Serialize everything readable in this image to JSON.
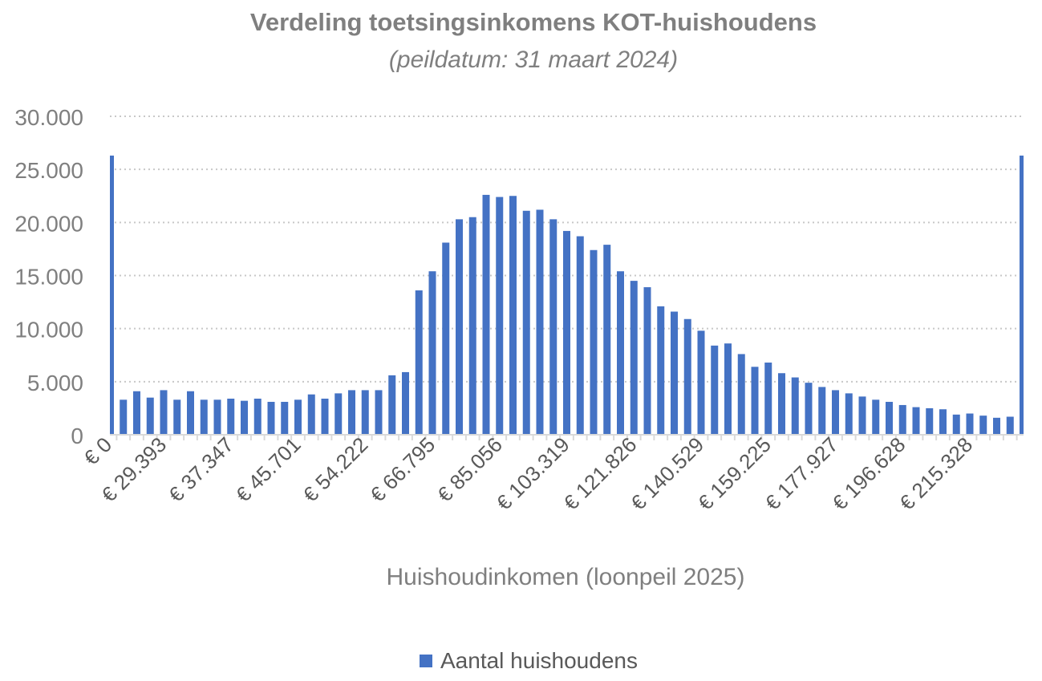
{
  "chart_data": {
    "type": "bar",
    "title": "Verdeling toetsingsinkomens KOT-huishoudens",
    "subtitle": "(peildatum: 31 maart 2024)",
    "xlabel": "Huishoudinkomen (loonpeil 2025)",
    "ylabel": "",
    "ylim": [
      0,
      30000
    ],
    "yticks": [
      "0",
      "5.000",
      "10.000",
      "15.000",
      "20.000",
      "25.000",
      "30.000"
    ],
    "ytick_values": [
      0,
      5000,
      10000,
      15000,
      20000,
      25000,
      30000
    ],
    "grid": "horizontal dotted",
    "legend": "bottom",
    "xtick_labels": [
      "€ 0",
      "€ 29.393",
      "€ 37.347",
      "€ 45.701",
      "€ 54.222",
      "€ 66.795",
      "€ 85.056",
      "€ 103.319",
      "€ 121.826",
      "€ 140.529",
      "€ 159.225",
      "€ 177.927",
      "€ 196.628",
      "€ 215.328"
    ],
    "series": [
      {
        "name": "Aantal huishoudens",
        "color": "#4472c4",
        "values": [
          26300,
          3300,
          4100,
          3500,
          4200,
          3300,
          4100,
          3300,
          3300,
          3400,
          3200,
          3400,
          3100,
          3100,
          3300,
          3800,
          3400,
          3900,
          4200,
          4200,
          4200,
          5600,
          5900,
          13600,
          15400,
          18100,
          20300,
          20500,
          22600,
          22400,
          22500,
          21100,
          21200,
          20300,
          19200,
          18700,
          17400,
          17900,
          15400,
          14500,
          13900,
          12100,
          11600,
          10900,
          9800,
          8400,
          8600,
          7600,
          6400,
          6800,
          5800,
          5400,
          4900,
          4500,
          4200,
          3900,
          3600,
          3300,
          3100,
          2800,
          2600,
          2500,
          2400,
          1900,
          2000,
          1800,
          1600,
          1700,
          26300
        ]
      }
    ]
  }
}
